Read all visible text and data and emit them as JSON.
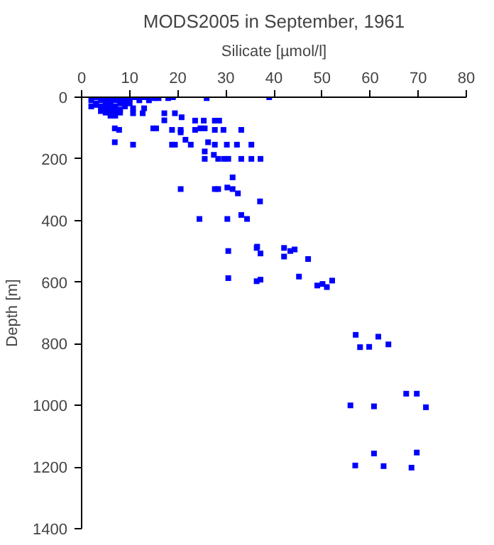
{
  "chart_data": {
    "type": "scatter",
    "title": "MODS2005 in September, 1961",
    "xlabel": "Silicate [µmol/l]",
    "ylabel": "Depth [m]",
    "xlim": [
      0,
      80
    ],
    "xticks": [
      0,
      10,
      20,
      30,
      40,
      50,
      60,
      70,
      80
    ],
    "ylim": [
      1400,
      0
    ],
    "yticks": [
      0,
      200,
      400,
      600,
      800,
      1000,
      1200,
      1400
    ],
    "grid": false,
    "marker": "square",
    "series": [
      {
        "color": "#0000ff",
        "x": [
          2,
          3,
          3,
          4,
          4,
          5,
          5,
          5,
          5,
          6,
          6,
          6,
          6,
          7,
          7,
          7,
          8,
          8,
          8,
          9,
          9,
          9,
          10,
          10,
          11,
          12,
          13,
          14,
          15,
          16,
          18,
          19,
          26,
          39,
          2,
          3,
          5,
          8,
          6,
          4,
          7,
          10.7,
          10.7,
          13,
          12.7,
          17.2,
          17.2,
          19.4,
          20.8,
          23.6,
          25.4,
          27.7,
          28.6,
          14.9,
          15.5,
          18.8,
          20.6,
          20.6,
          23.6,
          24.7,
          25.6,
          27.7,
          29.5,
          33.2,
          6.9,
          7.8,
          6.9,
          10.7,
          18.8,
          19.4,
          21.6,
          22.7,
          26.3,
          27.7,
          30.2,
          32.3,
          35.3,
          25.6,
          25.6,
          27.5,
          28.4,
          29.6,
          30.5,
          33.2,
          35.3,
          37.2,
          31.4,
          20.6,
          27.7,
          28.4,
          30.3,
          31.4,
          32.5,
          37.1,
          24.5,
          30.3,
          33.2,
          34.4,
          36.5,
          30.5,
          30.5,
          36.4,
          37.2,
          42.1,
          42.1,
          43.4,
          44.3,
          47.1,
          36.4,
          37.2,
          45.2,
          49,
          50.1,
          51,
          52.1,
          57,
          61.7,
          57.9,
          59.8,
          63.8,
          67.5,
          55.9,
          60.8,
          60.8,
          69.7,
          71.6,
          69.7,
          56.9,
          62.8,
          68.6
        ],
        "values": [
          10,
          20,
          0,
          10,
          30,
          0,
          15,
          25,
          40,
          5,
          20,
          35,
          50,
          10,
          30,
          45,
          5,
          20,
          40,
          0,
          15,
          30,
          5,
          20,
          0,
          10,
          0,
          10,
          3,
          3,
          3,
          0,
          3,
          0,
          30,
          25,
          50,
          50,
          60,
          45,
          60,
          36,
          52,
          36,
          52,
          52,
          75,
          52,
          65,
          76,
          76,
          76,
          76,
          101,
          101,
          106,
          106,
          114,
          106,
          101,
          101,
          106,
          106,
          106,
          101,
          106,
          146,
          154,
          154,
          154,
          138,
          154,
          146,
          154,
          154,
          154,
          154,
          176,
          200,
          187,
          200,
          200,
          200,
          200,
          200,
          200,
          260,
          298,
          298,
          298,
          293,
          298,
          312,
          338,
          395,
          395,
          382,
          395,
          485,
          499,
          587,
          489,
          507,
          489,
          517,
          499,
          494,
          525,
          597,
          592,
          582,
          611,
          606,
          616,
          595,
          771,
          777,
          811,
          810,
          802,
          962,
          1000,
          1003,
          1156,
          962,
          1006,
          1153,
          1195,
          1197,
          1202
        ]
      }
    ]
  }
}
